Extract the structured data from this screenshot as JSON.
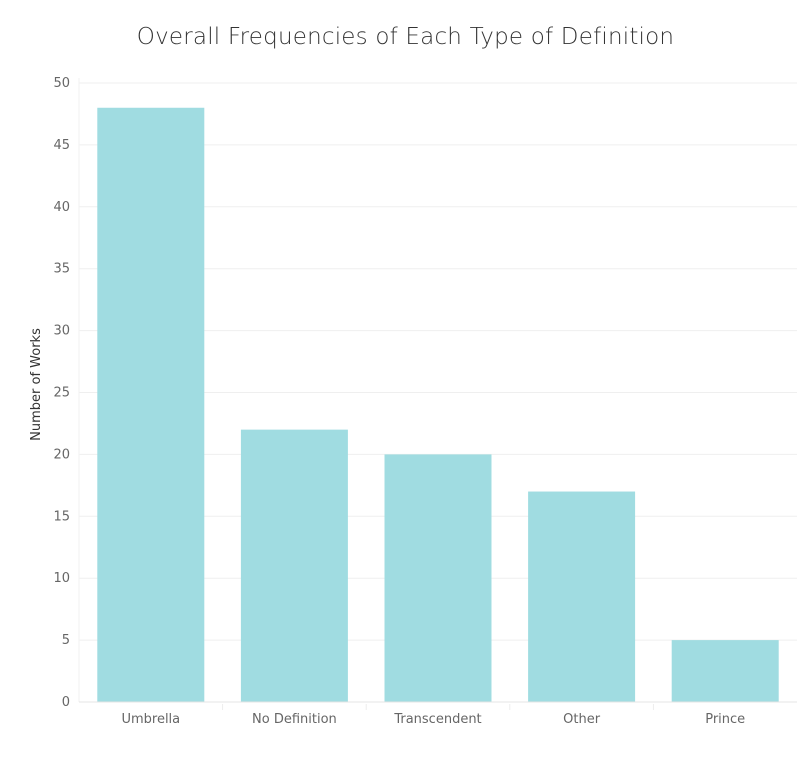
{
  "chart_data": {
    "type": "bar",
    "title": "Overall Frequencies of Each Type of Definition",
    "xlabel": "",
    "ylabel": "Number of Works",
    "categories": [
      "Umbrella",
      "No Definition",
      "Transcendent",
      "Other",
      "Prince"
    ],
    "values": [
      48,
      22,
      20,
      17,
      5
    ],
    "ylim": [
      0,
      50
    ],
    "yticks": [
      0,
      5,
      10,
      15,
      20,
      25,
      30,
      35,
      40,
      45,
      50
    ],
    "grid": true,
    "bar_color": "#A0DCE1",
    "gridline_color": "#EFEFEF"
  }
}
